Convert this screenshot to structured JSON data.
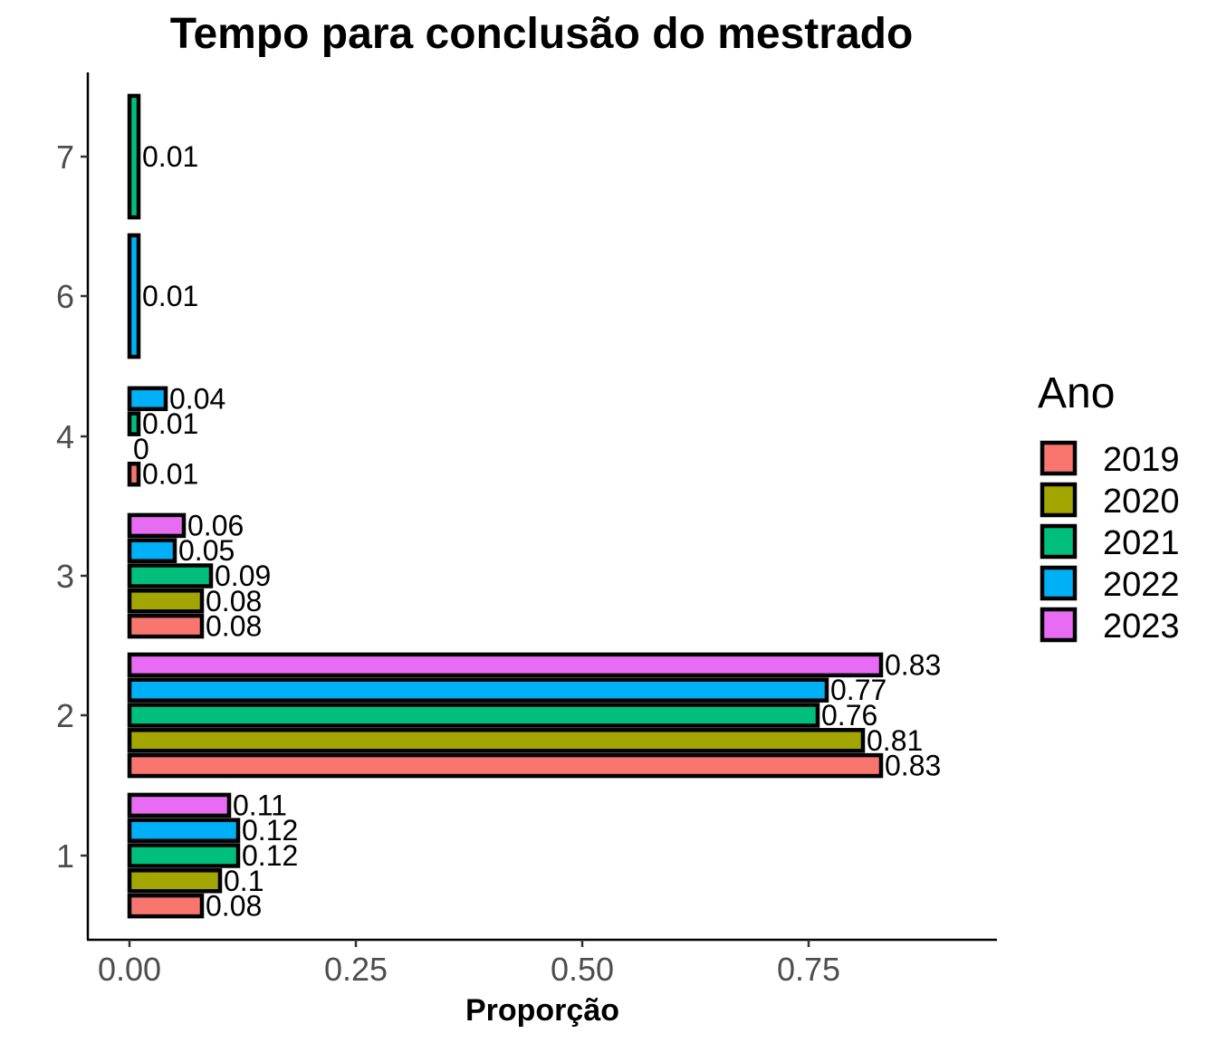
{
  "chart_data": {
    "type": "bar",
    "orientation": "horizontal",
    "title": "Tempo para conclusão do mestrado",
    "xlabel": "Proporção",
    "ylabel": "",
    "xlim": [
      0,
      0.95
    ],
    "x_ticks": [
      "0.00",
      "0.25",
      "0.50",
      "0.75"
    ],
    "x_tick_values": [
      0,
      0.25,
      0.5,
      0.75
    ],
    "categories": [
      "1",
      "2",
      "3",
      "4",
      "6",
      "7"
    ],
    "legend": {
      "title": "Ano",
      "position": "right"
    },
    "grid": false,
    "series": [
      {
        "name": "2019",
        "color": "#F8766D",
        "values": [
          0.08,
          0.83,
          0.08,
          0.01,
          null,
          null
        ],
        "labels": [
          "0.08",
          "0.83",
          "0.08",
          "0.01",
          null,
          null
        ]
      },
      {
        "name": "2020",
        "color": "#A3A500",
        "values": [
          0.1,
          0.81,
          0.08,
          0,
          null,
          null
        ],
        "labels": [
          "0.1",
          "0.81",
          "0.08",
          "0",
          null,
          null
        ]
      },
      {
        "name": "2021",
        "color": "#00BF7D",
        "values": [
          0.12,
          0.76,
          0.09,
          0.01,
          null,
          0.01
        ],
        "labels": [
          "0.12",
          "0.76",
          "0.09",
          "0.01",
          null,
          "0.01"
        ]
      },
      {
        "name": "2022",
        "color": "#00B0F6",
        "values": [
          0.12,
          0.77,
          0.05,
          0.04,
          0.01,
          null
        ],
        "labels": [
          "0.12",
          "0.77",
          "0.05",
          "0.04",
          "0.01",
          null
        ]
      },
      {
        "name": "2023",
        "color": "#E76BF3",
        "values": [
          0.11,
          0.83,
          0.06,
          null,
          null,
          null
        ],
        "labels": [
          "0.11",
          "0.83",
          "0.06",
          null,
          null,
          null
        ]
      }
    ]
  }
}
